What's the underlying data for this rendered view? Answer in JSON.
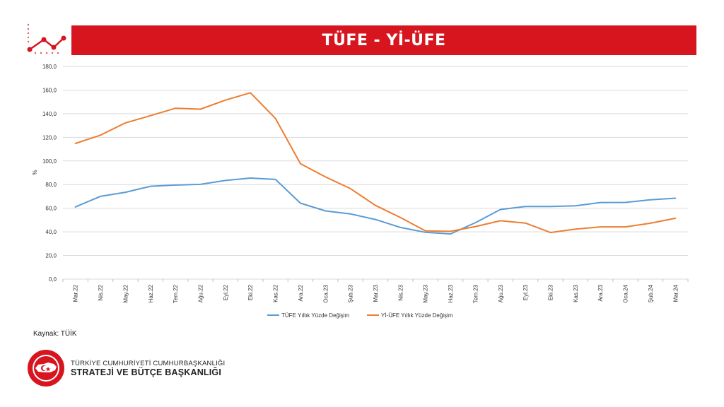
{
  "header": {
    "title": "TÜFE - Yİ-ÜFE",
    "accent_color": "#d7151f"
  },
  "chart_data": {
    "type": "line",
    "ylabel": "%",
    "ylim": [
      0,
      180
    ],
    "yticks": [
      "0,0",
      "20,0",
      "40,0",
      "60,0",
      "80,0",
      "100,0",
      "120,0",
      "140,0",
      "160,0",
      "180,0"
    ],
    "grid": true,
    "legend_position": "bottom",
    "categories": [
      "Mar.22",
      "Nis.22",
      "May.22",
      "Haz.22",
      "Tem.22",
      "Ağu.22",
      "Eyl.22",
      "Eki.22",
      "Kas.22",
      "Ara.22",
      "Oca.23",
      "Şub.23",
      "Mar.23",
      "Nis.23",
      "May.23",
      "Haz.23",
      "Tem.23",
      "Ağu.23",
      "Eyl.23",
      "Eki.23",
      "Kas.23",
      "Ara.23",
      "Oca.24",
      "Şub.24",
      "Mar.24"
    ],
    "series": [
      {
        "name": "TÜFE Yıllık Yüzde Değişim",
        "color": "#5b9bd5",
        "values": [
          61.1,
          70.0,
          73.5,
          78.6,
          79.6,
          80.2,
          83.5,
          85.5,
          84.4,
          64.3,
          57.7,
          55.2,
          50.5,
          43.7,
          39.6,
          38.2,
          47.8,
          58.9,
          61.5,
          61.4,
          62.0,
          64.8,
          64.9,
          67.1,
          68.5
        ]
      },
      {
        "name": "Yİ-ÜFE Yıllık Yüzde Değişim",
        "color": "#ed7d31",
        "values": [
          114.8,
          121.8,
          132.2,
          138.3,
          144.6,
          143.8,
          151.5,
          157.7,
          136.0,
          97.7,
          86.5,
          76.6,
          62.4,
          52.1,
          40.8,
          40.4,
          44.5,
          49.4,
          47.4,
          39.4,
          42.3,
          44.2,
          44.2,
          47.3,
          51.5
        ]
      }
    ]
  },
  "footer": {
    "source": "Kaynak: TÜİK",
    "org_line1": "TÜRKİYE CUMHURİYETİ CUMHURBAŞKANLIĞI",
    "org_line2": "STRATEJİ VE BÜTÇE BAŞKANLIĞI"
  }
}
